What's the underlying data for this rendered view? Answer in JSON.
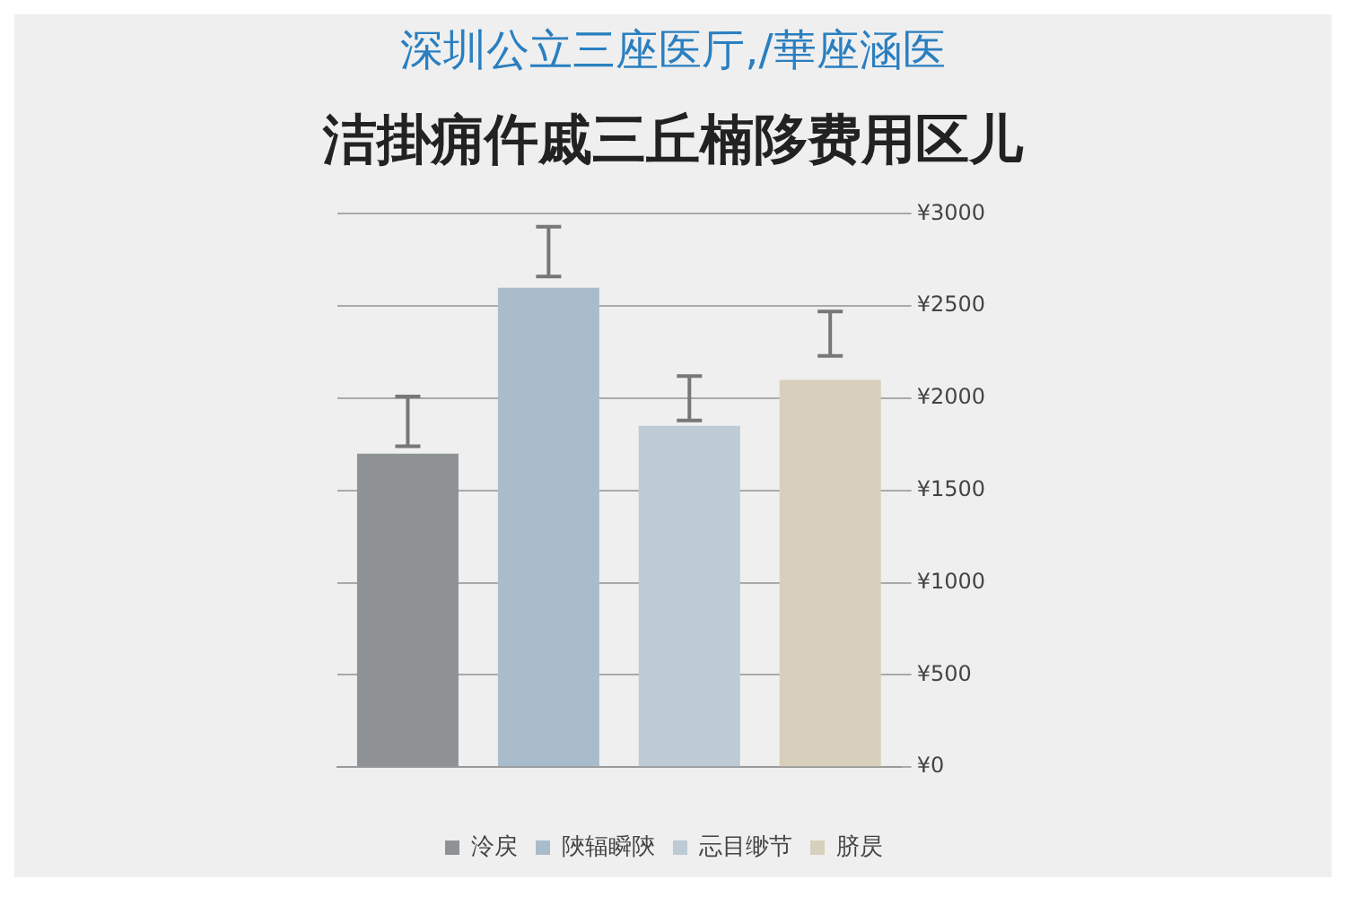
{
  "chart_data": {
    "type": "bar",
    "subtitle": "深圳公立三座医厅,/華座涵医",
    "title": "洁掛痈仵戚三丘楠陊费用区儿",
    "categories": [
      null,
      null,
      null,
      null
    ],
    "series": [
      {
        "name": "泠戻",
        "color": "#8e9295",
        "values": [
          1700,
          null,
          null,
          null
        ],
        "errors": [
          [
            1740,
            2010
          ],
          null,
          null,
          null
        ]
      },
      {
        "name": "陜辐瞬陝",
        "color": "#a9bccb",
        "values": [
          null,
          2600,
          null,
          null
        ],
        "errors": [
          null,
          [
            2660,
            2930
          ],
          null,
          null
        ]
      },
      {
        "name": "忈目缈节",
        "color": "#bccbd4",
        "values": [
          null,
          null,
          1850,
          null
        ],
        "errors": [
          null,
          null,
          [
            1880,
            2120
          ],
          null
        ]
      },
      {
        "name": "脐昃",
        "color": "#d8cfbc",
        "values": [
          null,
          null,
          null,
          2100
        ],
        "errors": [
          null,
          null,
          null,
          [
            2230,
            2470
          ]
        ]
      }
    ],
    "ylim": [
      0,
      3000
    ],
    "yticks": [
      {
        "value": 0,
        "label": "¥0"
      },
      {
        "value": 500,
        "label": "¥500"
      },
      {
        "value": 1000,
        "label": "¥1000"
      },
      {
        "value": 1500,
        "label": "¥1500"
      },
      {
        "value": 2000,
        "label": "¥2000"
      },
      {
        "value": 2500,
        "label": "¥2500"
      },
      {
        "value": 3000,
        "label": "¥3000"
      }
    ],
    "grid": "y",
    "legend": "bottom"
  }
}
